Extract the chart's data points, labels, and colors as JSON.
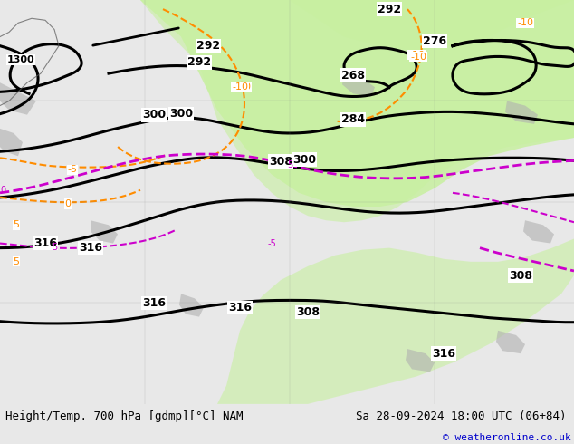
{
  "title_left": "Height/Temp. 700 hPa [gdmp][°C] NAM",
  "title_right": "Sa 28-09-2024 18:00 UTC (06+84)",
  "copyright": "© weatheronline.co.uk",
  "bg_color": "#e8e8e8",
  "map_bg": "#f0f0f0",
  "green_fill": "#c8f0a0",
  "gray_fill": "#b0b0b0",
  "figsize": [
    6.34,
    4.9
  ],
  "dpi": 100,
  "bottom_bar_color": "#ffffff",
  "bottom_bar_height": 0.08,
  "footer_fontsize": 9,
  "copyright_color": "#0000cc",
  "title_color": "#000000"
}
